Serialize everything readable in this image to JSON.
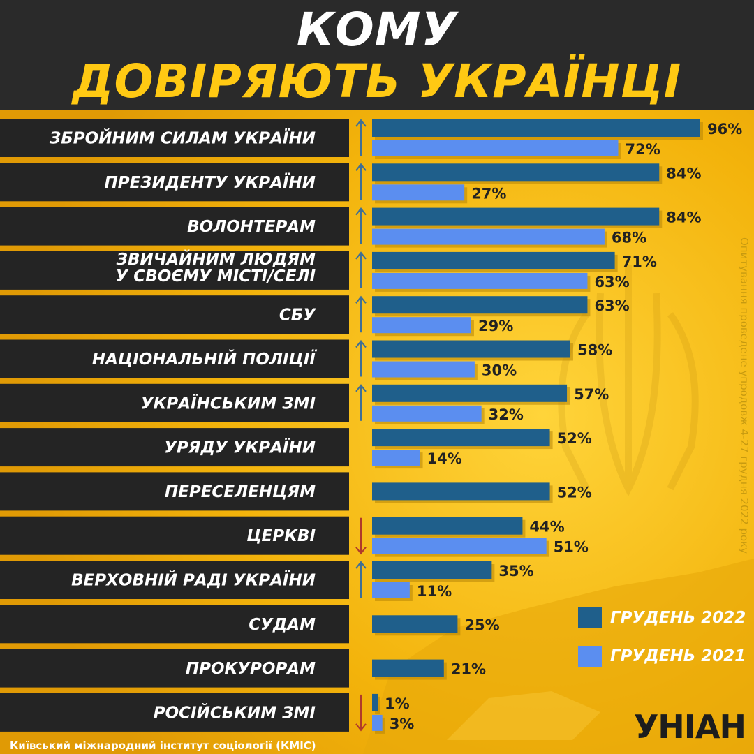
{
  "header": {
    "title_line1": "КОМУ",
    "title_line2": "ДОВІРЯЮТЬ УКРАЇНЦІ"
  },
  "chart_data": {
    "type": "bar",
    "orientation": "horizontal",
    "categories": [
      "ЗБРОЙНИМ СИЛАМ УКРАЇНИ",
      "ПРЕЗИДЕНТУ УКРАЇНИ",
      "ВОЛОНТЕРАМ",
      "ЗВИЧАЙНИМ ЛЮДЯМ\nУ СВОЄМУ МІСТІ/СЕЛІ",
      "СБУ",
      "НАЦІОНАЛЬНІЙ ПОЛІЦІЇ",
      "УКРАЇНСЬКИМ ЗМІ",
      "УРЯДУ УКРАЇНИ",
      "ПЕРЕСЕЛЕНЦЯМ",
      "ЦЕРКВІ",
      "ВЕРХОВНІЙ РАДІ УКРАЇНИ",
      "СУДАМ",
      "ПРОКУРОРАМ",
      "РОСІЙСЬКИМ ЗМІ"
    ],
    "series": [
      {
        "name": "ГРУДЕНЬ 2022",
        "color": "#1f5f8b",
        "values": [
          96,
          84,
          84,
          71,
          63,
          58,
          57,
          52,
          52,
          44,
          35,
          25,
          21,
          1
        ]
      },
      {
        "name": "ГРУДЕНЬ 2021",
        "color": "#5b8ef0",
        "values": [
          72,
          27,
          68,
          63,
          29,
          30,
          32,
          14,
          null,
          51,
          11,
          null,
          null,
          3
        ]
      }
    ],
    "trend": [
      "up",
      "up",
      "up",
      "up",
      "up",
      "up",
      "up",
      null,
      null,
      "down",
      "up",
      null,
      null,
      "down"
    ],
    "value_suffix": "%",
    "xlim": [
      0,
      100
    ],
    "legend_position": "right"
  },
  "legend": {
    "item_2022": "ГРУДЕНЬ 2022",
    "item_2021": "ГРУДЕНЬ 2021"
  },
  "side_note": "Опитування проведене упродовж 4-27 грудня 2022 року",
  "source": "Київський міжнародний інститут соціології (КМІС)",
  "logo_text": "УНІАН",
  "colors": {
    "background_yellow": "#f4b90d",
    "header_dark": "#2a2a2a",
    "title_yellow": "#ffc913",
    "up_arrow": "#3f6f96",
    "down_arrow": "#b03a2a"
  }
}
